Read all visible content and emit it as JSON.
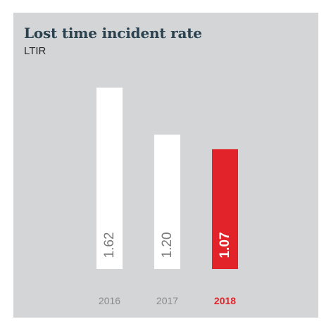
{
  "chart_data": {
    "type": "bar",
    "title": "Lost time incident rate",
    "subtitle": "LTIR",
    "categories": [
      "2016",
      "2017",
      "2018"
    ],
    "values": [
      1.62,
      1.2,
      1.07
    ],
    "value_labels": [
      "1.62",
      "1.20",
      "1.07"
    ],
    "highlight_index": 2,
    "ylim": [
      0,
      1.9
    ],
    "grid": false,
    "legend": "none",
    "colors": {
      "bar": "#ffffff",
      "highlight": "#e3232a",
      "background": "#d4d5d6"
    }
  }
}
